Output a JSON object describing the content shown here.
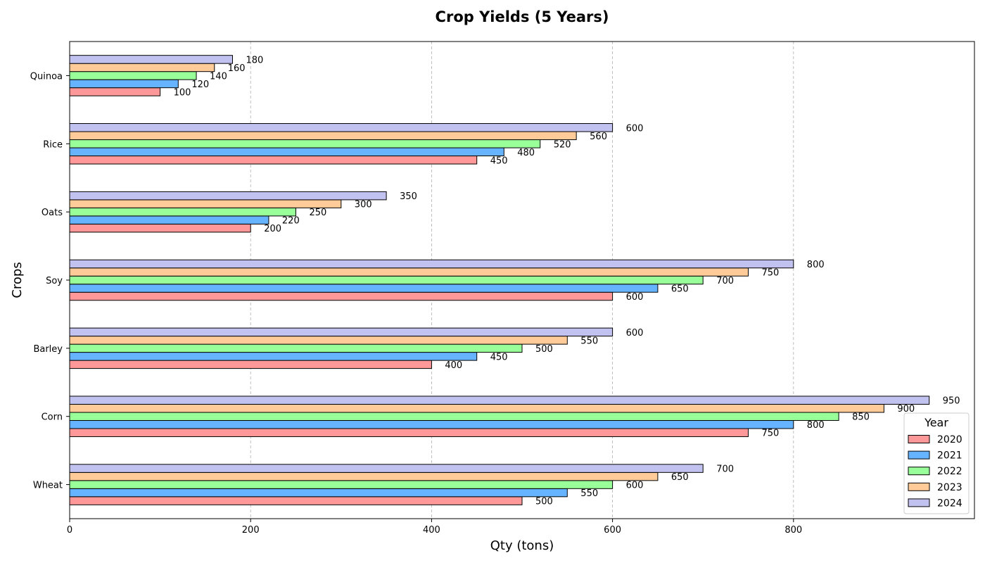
{
  "chart_data": {
    "type": "bar",
    "orientation": "horizontal",
    "title": "Crop Yields (5 Years)",
    "xlabel": "Qty (tons)",
    "ylabel": "Crops",
    "xlim": [
      0,
      1000
    ],
    "xticks": [
      0,
      200,
      400,
      600,
      800
    ],
    "categories": [
      "Wheat",
      "Corn",
      "Barley",
      "Soy",
      "Oats",
      "Rice",
      "Quinoa"
    ],
    "series": [
      {
        "name": "2020",
        "color": "#ff9999",
        "values": [
          500,
          750,
          400,
          600,
          200,
          450,
          100
        ]
      },
      {
        "name": "2021",
        "color": "#66b3ff",
        "values": [
          550,
          800,
          450,
          650,
          220,
          480,
          120
        ]
      },
      {
        "name": "2022",
        "color": "#99ff99",
        "values": [
          600,
          850,
          500,
          700,
          250,
          520,
          140
        ]
      },
      {
        "name": "2023",
        "color": "#ffcc99",
        "values": [
          650,
          900,
          550,
          750,
          300,
          560,
          160
        ]
      },
      {
        "name": "2024",
        "color": "#c2c2f0",
        "values": [
          700,
          950,
          600,
          800,
          350,
          600,
          180
        ]
      }
    ],
    "grid": "x-dashed",
    "legend": {
      "title": "Year",
      "placement": "lower-right"
    }
  }
}
